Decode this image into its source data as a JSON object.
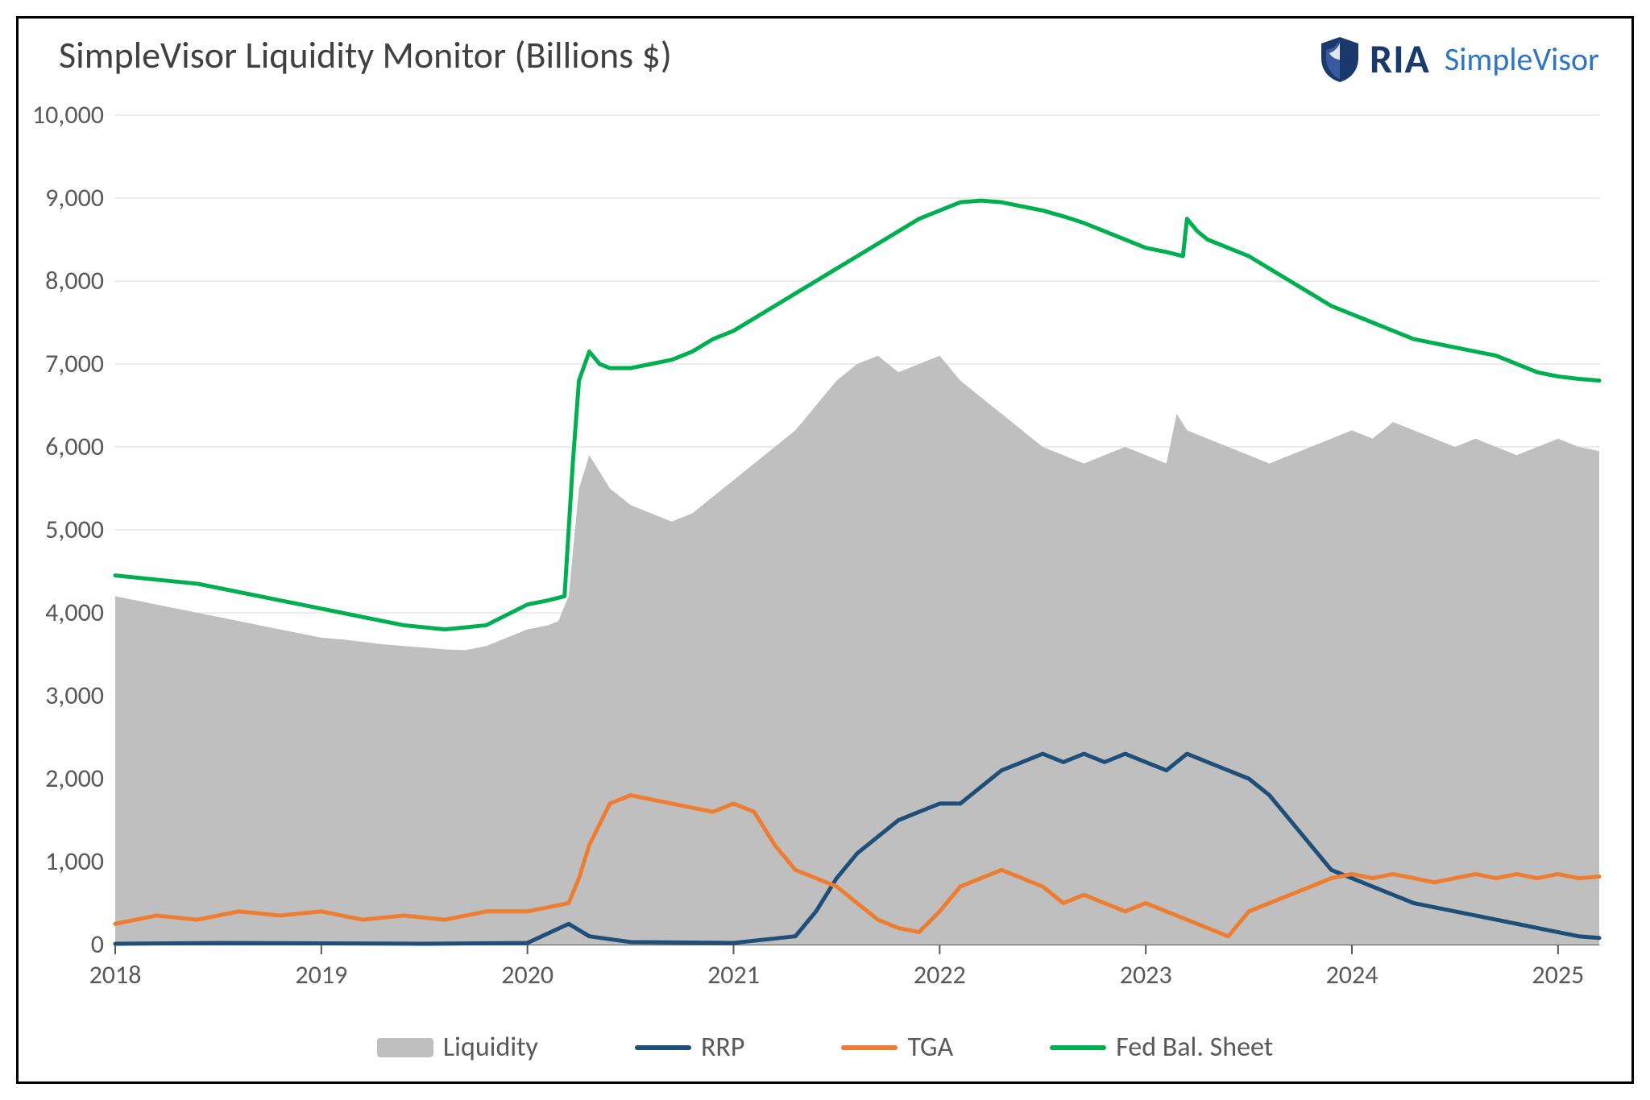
{
  "chart": {
    "type": "line+area",
    "title": "SimpleVisor Liquidity Monitor (Billions $)",
    "title_fontsize": 46,
    "title_color": "#404040",
    "background_color": "#ffffff",
    "border_color": "#000000",
    "grid_color": "#d9d9d9",
    "axis_label_color": "#595959",
    "axis_label_fontsize": 32,
    "x": {
      "min": 2018.0,
      "max": 2025.2,
      "ticks": [
        2018,
        2019,
        2020,
        2021,
        2022,
        2023,
        2024,
        2025
      ],
      "tick_labels": [
        "2018",
        "2019",
        "2020",
        "2021",
        "2022",
        "2023",
        "2024",
        "2025"
      ]
    },
    "y": {
      "min": 0,
      "max": 10000,
      "ticks": [
        0,
        1000,
        2000,
        3000,
        4000,
        5000,
        6000,
        7000,
        8000,
        9000,
        10000
      ],
      "tick_labels": [
        "0",
        "1,000",
        "2,000",
        "3,000",
        "4,000",
        "5,000",
        "6,000",
        "7,000",
        "8,000",
        "9,000",
        "10,000"
      ]
    },
    "line_width": 5,
    "area_opacity": 1.0,
    "series": {
      "liquidity": {
        "label": "Liquidity",
        "type": "area",
        "color": "#bfbfbf",
        "data": [
          [
            2018.0,
            4200
          ],
          [
            2018.1,
            4150
          ],
          [
            2018.2,
            4100
          ],
          [
            2018.3,
            4050
          ],
          [
            2018.4,
            4000
          ],
          [
            2018.5,
            3950
          ],
          [
            2018.6,
            3900
          ],
          [
            2018.7,
            3850
          ],
          [
            2018.8,
            3800
          ],
          [
            2018.9,
            3750
          ],
          [
            2019.0,
            3700
          ],
          [
            2019.1,
            3680
          ],
          [
            2019.2,
            3650
          ],
          [
            2019.3,
            3620
          ],
          [
            2019.4,
            3600
          ],
          [
            2019.5,
            3580
          ],
          [
            2019.6,
            3560
          ],
          [
            2019.7,
            3550
          ],
          [
            2019.8,
            3600
          ],
          [
            2019.9,
            3700
          ],
          [
            2020.0,
            3800
          ],
          [
            2020.1,
            3850
          ],
          [
            2020.15,
            3900
          ],
          [
            2020.2,
            4200
          ],
          [
            2020.25,
            5500
          ],
          [
            2020.3,
            5900
          ],
          [
            2020.35,
            5700
          ],
          [
            2020.4,
            5500
          ],
          [
            2020.5,
            5300
          ],
          [
            2020.6,
            5200
          ],
          [
            2020.7,
            5100
          ],
          [
            2020.8,
            5200
          ],
          [
            2020.9,
            5400
          ],
          [
            2021.0,
            5600
          ],
          [
            2021.1,
            5800
          ],
          [
            2021.2,
            6000
          ],
          [
            2021.3,
            6200
          ],
          [
            2021.4,
            6500
          ],
          [
            2021.5,
            6800
          ],
          [
            2021.6,
            7000
          ],
          [
            2021.7,
            7100
          ],
          [
            2021.8,
            6900
          ],
          [
            2021.9,
            7000
          ],
          [
            2022.0,
            7100
          ],
          [
            2022.1,
            6800
          ],
          [
            2022.2,
            6600
          ],
          [
            2022.3,
            6400
          ],
          [
            2022.4,
            6200
          ],
          [
            2022.5,
            6000
          ],
          [
            2022.6,
            5900
          ],
          [
            2022.7,
            5800
          ],
          [
            2022.8,
            5900
          ],
          [
            2022.9,
            6000
          ],
          [
            2023.0,
            5900
          ],
          [
            2023.1,
            5800
          ],
          [
            2023.15,
            6400
          ],
          [
            2023.2,
            6200
          ],
          [
            2023.3,
            6100
          ],
          [
            2023.4,
            6000
          ],
          [
            2023.5,
            5900
          ],
          [
            2023.6,
            5800
          ],
          [
            2023.7,
            5900
          ],
          [
            2023.8,
            6000
          ],
          [
            2023.9,
            6100
          ],
          [
            2024.0,
            6200
          ],
          [
            2024.1,
            6100
          ],
          [
            2024.2,
            6300
          ],
          [
            2024.3,
            6200
          ],
          [
            2024.4,
            6100
          ],
          [
            2024.5,
            6000
          ],
          [
            2024.6,
            6100
          ],
          [
            2024.7,
            6000
          ],
          [
            2024.8,
            5900
          ],
          [
            2024.9,
            6000
          ],
          [
            2025.0,
            6100
          ],
          [
            2025.1,
            6000
          ],
          [
            2025.2,
            5950
          ]
        ]
      },
      "rrp": {
        "label": "RRP",
        "type": "line",
        "color": "#1f4e79",
        "data": [
          [
            2018.0,
            10
          ],
          [
            2018.5,
            20
          ],
          [
            2019.0,
            15
          ],
          [
            2019.5,
            10
          ],
          [
            2020.0,
            20
          ],
          [
            2020.2,
            250
          ],
          [
            2020.3,
            100
          ],
          [
            2020.5,
            30
          ],
          [
            2021.0,
            20
          ],
          [
            2021.3,
            100
          ],
          [
            2021.4,
            400
          ],
          [
            2021.5,
            800
          ],
          [
            2021.6,
            1100
          ],
          [
            2021.7,
            1300
          ],
          [
            2021.8,
            1500
          ],
          [
            2021.9,
            1600
          ],
          [
            2022.0,
            1700
          ],
          [
            2022.1,
            1700
          ],
          [
            2022.2,
            1900
          ],
          [
            2022.3,
            2100
          ],
          [
            2022.4,
            2200
          ],
          [
            2022.5,
            2300
          ],
          [
            2022.6,
            2200
          ],
          [
            2022.7,
            2300
          ],
          [
            2022.8,
            2200
          ],
          [
            2022.9,
            2300
          ],
          [
            2023.0,
            2200
          ],
          [
            2023.1,
            2100
          ],
          [
            2023.2,
            2300
          ],
          [
            2023.3,
            2200
          ],
          [
            2023.4,
            2100
          ],
          [
            2023.5,
            2000
          ],
          [
            2023.6,
            1800
          ],
          [
            2023.7,
            1500
          ],
          [
            2023.8,
            1200
          ],
          [
            2023.9,
            900
          ],
          [
            2024.0,
            800
          ],
          [
            2024.1,
            700
          ],
          [
            2024.2,
            600
          ],
          [
            2024.3,
            500
          ],
          [
            2024.4,
            450
          ],
          [
            2024.5,
            400
          ],
          [
            2024.6,
            350
          ],
          [
            2024.7,
            300
          ],
          [
            2024.8,
            250
          ],
          [
            2024.9,
            200
          ],
          [
            2025.0,
            150
          ],
          [
            2025.1,
            100
          ],
          [
            2025.2,
            80
          ]
        ]
      },
      "tga": {
        "label": "TGA",
        "type": "line",
        "color": "#ed7d31",
        "data": [
          [
            2018.0,
            250
          ],
          [
            2018.2,
            350
          ],
          [
            2018.4,
            300
          ],
          [
            2018.6,
            400
          ],
          [
            2018.8,
            350
          ],
          [
            2019.0,
            400
          ],
          [
            2019.2,
            300
          ],
          [
            2019.4,
            350
          ],
          [
            2019.6,
            300
          ],
          [
            2019.8,
            400
          ],
          [
            2020.0,
            400
          ],
          [
            2020.1,
            450
          ],
          [
            2020.2,
            500
          ],
          [
            2020.25,
            800
          ],
          [
            2020.3,
            1200
          ],
          [
            2020.4,
            1700
          ],
          [
            2020.5,
            1800
          ],
          [
            2020.6,
            1750
          ],
          [
            2020.7,
            1700
          ],
          [
            2020.8,
            1650
          ],
          [
            2020.9,
            1600
          ],
          [
            2021.0,
            1700
          ],
          [
            2021.1,
            1600
          ],
          [
            2021.2,
            1200
          ],
          [
            2021.3,
            900
          ],
          [
            2021.4,
            800
          ],
          [
            2021.5,
            700
          ],
          [
            2021.6,
            500
          ],
          [
            2021.7,
            300
          ],
          [
            2021.8,
            200
          ],
          [
            2021.9,
            150
          ],
          [
            2022.0,
            400
          ],
          [
            2022.1,
            700
          ],
          [
            2022.2,
            800
          ],
          [
            2022.3,
            900
          ],
          [
            2022.4,
            800
          ],
          [
            2022.5,
            700
          ],
          [
            2022.6,
            500
          ],
          [
            2022.7,
            600
          ],
          [
            2022.8,
            500
          ],
          [
            2022.9,
            400
          ],
          [
            2023.0,
            500
          ],
          [
            2023.1,
            400
          ],
          [
            2023.2,
            300
          ],
          [
            2023.3,
            200
          ],
          [
            2023.4,
            100
          ],
          [
            2023.5,
            400
          ],
          [
            2023.6,
            500
          ],
          [
            2023.7,
            600
          ],
          [
            2023.8,
            700
          ],
          [
            2023.9,
            800
          ],
          [
            2024.0,
            850
          ],
          [
            2024.1,
            800
          ],
          [
            2024.2,
            850
          ],
          [
            2024.3,
            800
          ],
          [
            2024.4,
            750
          ],
          [
            2024.5,
            800
          ],
          [
            2024.6,
            850
          ],
          [
            2024.7,
            800
          ],
          [
            2024.8,
            850
          ],
          [
            2024.9,
            800
          ],
          [
            2025.0,
            850
          ],
          [
            2025.1,
            800
          ],
          [
            2025.2,
            820
          ]
        ]
      },
      "fed": {
        "label": "Fed Bal. Sheet",
        "type": "line",
        "color": "#00b050",
        "data": [
          [
            2018.0,
            4450
          ],
          [
            2018.2,
            4400
          ],
          [
            2018.4,
            4350
          ],
          [
            2018.6,
            4250
          ],
          [
            2018.8,
            4150
          ],
          [
            2019.0,
            4050
          ],
          [
            2019.2,
            3950
          ],
          [
            2019.4,
            3850
          ],
          [
            2019.6,
            3800
          ],
          [
            2019.8,
            3850
          ],
          [
            2020.0,
            4100
          ],
          [
            2020.1,
            4150
          ],
          [
            2020.18,
            4200
          ],
          [
            2020.22,
            5800
          ],
          [
            2020.25,
            6800
          ],
          [
            2020.3,
            7150
          ],
          [
            2020.35,
            7000
          ],
          [
            2020.4,
            6950
          ],
          [
            2020.5,
            6950
          ],
          [
            2020.6,
            7000
          ],
          [
            2020.7,
            7050
          ],
          [
            2020.8,
            7150
          ],
          [
            2020.9,
            7300
          ],
          [
            2021.0,
            7400
          ],
          [
            2021.1,
            7550
          ],
          [
            2021.2,
            7700
          ],
          [
            2021.3,
            7850
          ],
          [
            2021.4,
            8000
          ],
          [
            2021.5,
            8150
          ],
          [
            2021.6,
            8300
          ],
          [
            2021.7,
            8450
          ],
          [
            2021.8,
            8600
          ],
          [
            2021.9,
            8750
          ],
          [
            2022.0,
            8850
          ],
          [
            2022.1,
            8950
          ],
          [
            2022.2,
            8970
          ],
          [
            2022.3,
            8950
          ],
          [
            2022.4,
            8900
          ],
          [
            2022.5,
            8850
          ],
          [
            2022.6,
            8780
          ],
          [
            2022.7,
            8700
          ],
          [
            2022.8,
            8600
          ],
          [
            2022.9,
            8500
          ],
          [
            2023.0,
            8400
          ],
          [
            2023.1,
            8350
          ],
          [
            2023.18,
            8300
          ],
          [
            2023.2,
            8750
          ],
          [
            2023.25,
            8600
          ],
          [
            2023.3,
            8500
          ],
          [
            2023.4,
            8400
          ],
          [
            2023.5,
            8300
          ],
          [
            2023.6,
            8150
          ],
          [
            2023.7,
            8000
          ],
          [
            2023.8,
            7850
          ],
          [
            2023.9,
            7700
          ],
          [
            2024.0,
            7600
          ],
          [
            2024.1,
            7500
          ],
          [
            2024.2,
            7400
          ],
          [
            2024.3,
            7300
          ],
          [
            2024.4,
            7250
          ],
          [
            2024.5,
            7200
          ],
          [
            2024.6,
            7150
          ],
          [
            2024.7,
            7100
          ],
          [
            2024.8,
            7000
          ],
          [
            2024.9,
            6900
          ],
          [
            2025.0,
            6850
          ],
          [
            2025.1,
            6820
          ],
          [
            2025.2,
            6800
          ]
        ]
      }
    },
    "legend": {
      "position": "bottom",
      "fontsize": 34,
      "text_color": "#595959",
      "items": [
        {
          "key": "liquidity",
          "label": "Liquidity",
          "swatch": "area",
          "color": "#bfbfbf"
        },
        {
          "key": "rrp",
          "label": "RRP",
          "swatch": "line",
          "color": "#1f4e79"
        },
        {
          "key": "tga",
          "label": "TGA",
          "swatch": "line",
          "color": "#ed7d31"
        },
        {
          "key": "fed",
          "label": "Fed Bal. Sheet",
          "swatch": "line",
          "color": "#00b050"
        }
      ]
    }
  },
  "branding": {
    "ria_text": "RIA",
    "ria_color": "#1a3a6e",
    "shield_color": "#1a3a6e",
    "simplevisor_text": "SimpleVisor",
    "simplevisor_color": "#2e75c6"
  }
}
